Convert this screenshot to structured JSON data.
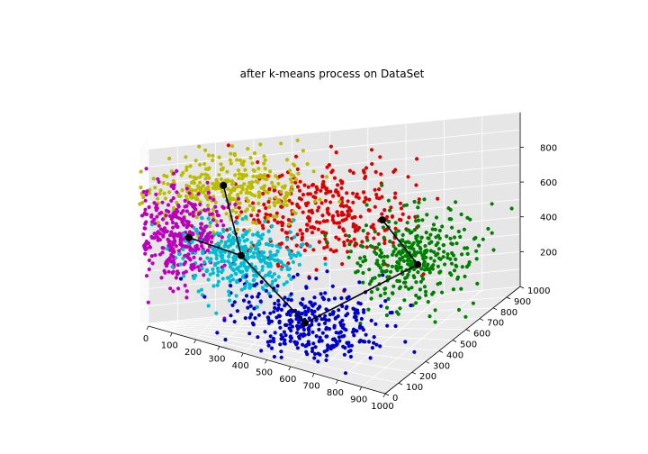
{
  "chart_data": {
    "type": "scatter",
    "projection": "3d",
    "title": "after k-means process on  DataSet",
    "xlabel": "",
    "ylabel": "",
    "zlabel": "",
    "xlim": [
      0,
      1000
    ],
    "ylim": [
      0,
      1000
    ],
    "zlim": [
      0,
      1000
    ],
    "x_ticks": [
      "0",
      "100",
      "200",
      "300",
      "400",
      "500",
      "600",
      "700",
      "800",
      "900",
      "1000"
    ],
    "y_ticks": [
      "0",
      "100",
      "200",
      "300",
      "400",
      "500",
      "600",
      "700",
      "800",
      "900",
      "1000"
    ],
    "z_ticks": [
      "200",
      "400",
      "600",
      "800"
    ],
    "grid": true,
    "point_count_per_cluster": 350,
    "colors": {
      "background_pane_left": "#f0f0f0",
      "background_pane_right": "#e6e6e6",
      "background_pane_floor": "#ebebeb",
      "centroid": "#000000",
      "path": "#000000"
    },
    "series": [
      {
        "color": "#0000cc",
        "center": [
          600,
          250,
          150
        ],
        "spread": [
          230,
          150,
          160
        ]
      },
      {
        "color": "#00bcd4",
        "center": [
          330,
          360,
          400
        ],
        "spread": [
          170,
          140,
          170
        ]
      },
      {
        "color": "#bb00bb",
        "center": [
          120,
          380,
          500
        ],
        "spread": [
          120,
          240,
          220
        ]
      },
      {
        "color": "#bbbb00",
        "center": [
          250,
          820,
          750
        ],
        "spread": [
          190,
          150,
          170
        ]
      },
      {
        "color": "#dd0000",
        "center": [
          500,
          900,
          550
        ],
        "spread": [
          200,
          90,
          250
        ]
      },
      {
        "color": "#008000",
        "center": [
          780,
          800,
          300
        ],
        "spread": [
          140,
          170,
          220
        ]
      }
    ],
    "centroids": [
      [
        150,
        400,
        500
      ],
      [
        330,
        380,
        430
      ],
      [
        580,
        260,
        140
      ],
      [
        810,
        720,
        300
      ],
      [
        680,
        820,
        520
      ],
      [
        230,
        850,
        760
      ]
    ],
    "path_segments": [
      [
        0,
        1
      ],
      [
        1,
        5
      ],
      [
        1,
        2
      ],
      [
        2,
        3
      ],
      [
        3,
        4
      ]
    ]
  }
}
